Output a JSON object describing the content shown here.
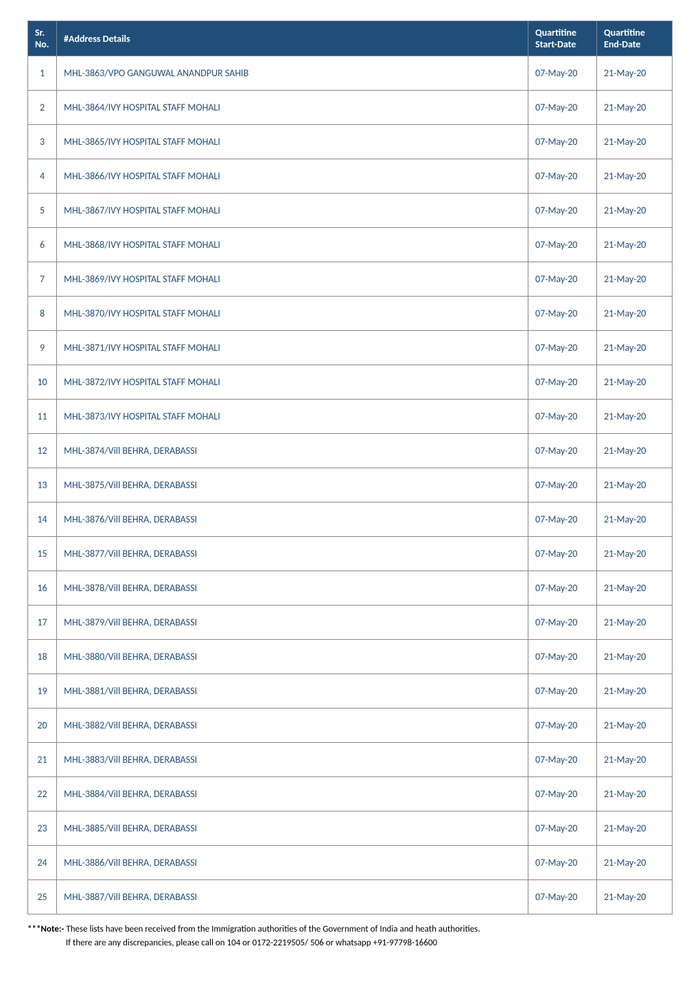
{
  "table": {
    "header": {
      "bg_color": "#1f4e79",
      "text_color": "#ffffff",
      "columns": {
        "sr_line1": "Sr.",
        "sr_line2": "No.",
        "addr": "#Address Details",
        "start_line1": "Quartitine",
        "start_line2": "Start-Date",
        "end_line1": "Quartitine",
        "end_line2": "End-Date"
      }
    },
    "body": {
      "text_color": "#1f4e79"
    },
    "rows": [
      {
        "sr": "1",
        "addr": "MHL-3863/VPO GANGUWAL ANANDPUR SAHIB",
        "start": "07-May-20",
        "end": "21-May-20"
      },
      {
        "sr": "2",
        "addr": "MHL-3864/IVY HOSPITAL STAFF MOHALI",
        "start": "07-May-20",
        "end": "21-May-20"
      },
      {
        "sr": "3",
        "addr": "MHL-3865/IVY HOSPITAL STAFF MOHALI",
        "start": "07-May-20",
        "end": "21-May-20"
      },
      {
        "sr": "4",
        "addr": "MHL-3866/IVY HOSPITAL STAFF MOHALI",
        "start": "07-May-20",
        "end": "21-May-20"
      },
      {
        "sr": "5",
        "addr": "MHL-3867/IVY HOSPITAL STAFF MOHALI",
        "start": "07-May-20",
        "end": "21-May-20"
      },
      {
        "sr": "6",
        "addr": "MHL-3868/IVY HOSPITAL STAFF MOHALI",
        "start": "07-May-20",
        "end": "21-May-20"
      },
      {
        "sr": "7",
        "addr": "MHL-3869/IVY HOSPITAL STAFF MOHALI",
        "start": "07-May-20",
        "end": "21-May-20"
      },
      {
        "sr": "8",
        "addr": "MHL-3870/IVY HOSPITAL STAFF MOHALI",
        "start": "07-May-20",
        "end": "21-May-20"
      },
      {
        "sr": "9",
        "addr": "MHL-3871/IVY HOSPITAL STAFF MOHALI",
        "start": "07-May-20",
        "end": "21-May-20"
      },
      {
        "sr": "10",
        "addr": "MHL-3872/IVY HOSPITAL STAFF MOHALI",
        "start": "07-May-20",
        "end": "21-May-20"
      },
      {
        "sr": "11",
        "addr": "MHL-3873/IVY HOSPITAL STAFF MOHALI",
        "start": "07-May-20",
        "end": "21-May-20"
      },
      {
        "sr": "12",
        "addr": "MHL-3874/Vill BEHRA, DERABASSI",
        "start": "07-May-20",
        "end": "21-May-20"
      },
      {
        "sr": "13",
        "addr": "MHL-3875/Vill BEHRA, DERABASSI",
        "start": "07-May-20",
        "end": "21-May-20"
      },
      {
        "sr": "14",
        "addr": "MHL-3876/Vill BEHRA, DERABASSI",
        "start": "07-May-20",
        "end": "21-May-20"
      },
      {
        "sr": "15",
        "addr": "MHL-3877/Vill BEHRA, DERABASSI",
        "start": "07-May-20",
        "end": "21-May-20"
      },
      {
        "sr": "16",
        "addr": "MHL-3878/Vill BEHRA, DERABASSI",
        "start": "07-May-20",
        "end": "21-May-20"
      },
      {
        "sr": "17",
        "addr": "MHL-3879/Vill BEHRA, DERABASSI",
        "start": "07-May-20",
        "end": "21-May-20"
      },
      {
        "sr": "18",
        "addr": "MHL-3880/Vill BEHRA, DERABASSI",
        "start": "07-May-20",
        "end": "21-May-20"
      },
      {
        "sr": "19",
        "addr": "MHL-3881/Vill BEHRA, DERABASSI",
        "start": "07-May-20",
        "end": "21-May-20"
      },
      {
        "sr": "20",
        "addr": "MHL-3882/Vill BEHRA, DERABASSI",
        "start": "07-May-20",
        "end": "21-May-20"
      },
      {
        "sr": "21",
        "addr": "MHL-3883/Vill BEHRA, DERABASSI",
        "start": "07-May-20",
        "end": "21-May-20"
      },
      {
        "sr": "22",
        "addr": "MHL-3884/Vill BEHRA, DERABASSI",
        "start": "07-May-20",
        "end": "21-May-20"
      },
      {
        "sr": "23",
        "addr": "MHL-3885/Vill BEHRA, DERABASSI",
        "start": "07-May-20",
        "end": "21-May-20"
      },
      {
        "sr": "24",
        "addr": "MHL-3886/Vill BEHRA, DERABASSI",
        "start": "07-May-20",
        "end": "21-May-20"
      },
      {
        "sr": "25",
        "addr": "MHL-3887/Vill BEHRA, DERABASSI",
        "start": "07-May-20",
        "end": "21-May-20"
      }
    ]
  },
  "footnote": {
    "prefix": "***Note:- ",
    "line1": "These lists have been received from the Immigration authorities of the Government of India and heath authorities.",
    "line2": "If there are any discrepancies, please call on 104 or 0172-2219505/ 506 or whatsapp +91-97798-16600"
  }
}
